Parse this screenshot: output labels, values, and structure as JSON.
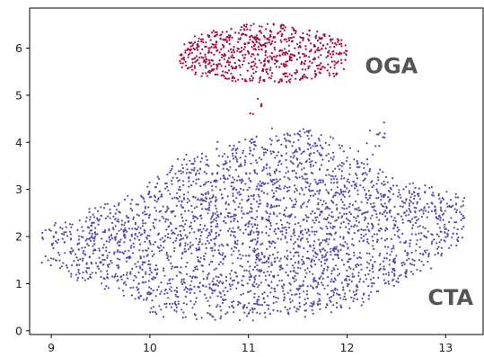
{
  "chart_data": {
    "type": "scatter",
    "title": "",
    "xlabel": "",
    "ylabel": "",
    "xlim": [
      8.78,
      13.38
    ],
    "ylim": [
      -0.08,
      6.85
    ],
    "grid": false,
    "x_ticks": [
      "9",
      "10",
      "11",
      "12",
      "13"
    ],
    "y_ticks": [
      "0",
      "1",
      "2",
      "3",
      "4",
      "5",
      "6"
    ],
    "series": [
      {
        "name": "OGA",
        "color": "#a50a45",
        "count": 700,
        "region": {
          "x_range": [
            10.3,
            12.0
          ],
          "y_range": [
            4.95,
            6.55
          ],
          "center": [
            11.17,
            5.8
          ]
        }
      },
      {
        "name": "CTA",
        "color": "#5a4aa8",
        "count": 3000,
        "region": {
          "x_range": [
            8.9,
            13.2
          ],
          "y_range": [
            0.2,
            4.5
          ],
          "center": [
            11.0,
            2.0
          ]
        }
      }
    ],
    "annotations": [
      {
        "text": "OGA",
        "x": 12.45,
        "y": 5.62,
        "color": "#555555"
      },
      {
        "text": "CTA",
        "x": 13.05,
        "y": 0.7,
        "color": "#555555"
      }
    ]
  }
}
